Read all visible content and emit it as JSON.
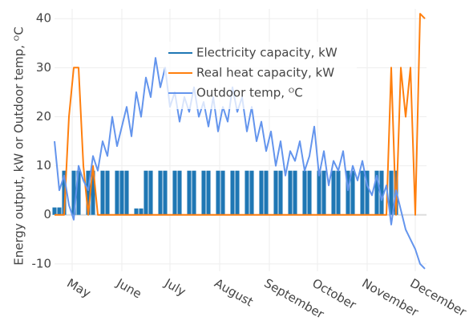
{
  "chart_data": {
    "type": "line",
    "y_label": "Energy output, kW or Outdoor temp, ᴼC",
    "x": [
      0,
      3,
      6,
      9,
      12,
      15,
      18,
      21,
      24,
      27,
      30,
      33,
      36,
      39,
      42,
      45,
      48,
      51,
      54,
      57,
      60,
      63,
      66,
      69,
      72,
      75,
      78,
      81,
      84,
      87,
      90,
      93,
      96,
      99,
      102,
      105,
      108,
      111,
      114,
      117,
      120,
      123,
      126,
      129,
      132,
      135,
      138,
      141,
      144,
      147,
      150,
      153,
      156,
      159,
      162,
      165,
      168,
      171,
      174,
      177,
      180,
      183,
      186,
      189,
      192,
      195,
      198,
      201,
      204,
      207,
      210,
      213,
      216,
      219,
      222,
      225,
      228,
      231
    ],
    "series": [
      {
        "name": "Electricity capacity, kW",
        "type": "bar",
        "color": "#1f77b4",
        "values": [
          1.5,
          1.5,
          9,
          0,
          9,
          9,
          0,
          9,
          9,
          0,
          9,
          9,
          0,
          9,
          9,
          9,
          0,
          1.3,
          1.3,
          9,
          9,
          0,
          9,
          9,
          0,
          9,
          9,
          0,
          9,
          9,
          0,
          9,
          9,
          0,
          9,
          9,
          0,
          9,
          9,
          0,
          9,
          9,
          0,
          9,
          9,
          0,
          9,
          9,
          0,
          9,
          9,
          0,
          9,
          9,
          0,
          9,
          9,
          0,
          9,
          9,
          0,
          9,
          9,
          0,
          9,
          9,
          0,
          9,
          9,
          0,
          9,
          9,
          0,
          0,
          0,
          0,
          0,
          0
        ]
      },
      {
        "name": "Real heat capacity, kW",
        "type": "line",
        "color": "#ff7f0e",
        "values": [
          0,
          0,
          0,
          20,
          30,
          30,
          10,
          0,
          10,
          0,
          0,
          0,
          0,
          0,
          0,
          0,
          0,
          0,
          0,
          0,
          0,
          0,
          0,
          0,
          0,
          0,
          0,
          0,
          0,
          0,
          0,
          0,
          0,
          0,
          0,
          0,
          0,
          0,
          0,
          0,
          0,
          0,
          0,
          0,
          0,
          0,
          0,
          0,
          0,
          0,
          0,
          0,
          0,
          0,
          0,
          0,
          0,
          0,
          0,
          0,
          0,
          0,
          0,
          0,
          0,
          0,
          0,
          0,
          0,
          0,
          30,
          0,
          30,
          20,
          30,
          0,
          41,
          40
        ]
      },
      {
        "name": "Outdoor temp,  ᴼC",
        "type": "line",
        "color": "#6495ed",
        "values": [
          15,
          5,
          8,
          2,
          -1,
          10,
          7,
          5,
          12,
          9,
          15,
          12,
          20,
          14,
          18,
          22,
          16,
          25,
          20,
          28,
          24,
          32,
          26,
          30,
          22,
          25,
          19,
          24,
          21,
          26,
          20,
          23,
          18,
          24,
          17,
          22,
          19,
          26,
          21,
          24,
          17,
          22,
          15,
          19,
          13,
          17,
          10,
          15,
          8,
          13,
          11,
          15,
          9,
          12,
          18,
          8,
          13,
          6,
          11,
          9,
          13,
          5,
          10,
          7,
          11,
          6,
          4,
          8,
          3,
          6,
          -2,
          5,
          1,
          -3,
          -5,
          -7,
          -10,
          -11
        ]
      }
    ],
    "xlim": [
      0,
      232
    ],
    "xticks": [
      {
        "value": 11,
        "label": "May"
      },
      {
        "value": 42,
        "label": "June"
      },
      {
        "value": 72,
        "label": "July"
      },
      {
        "value": 103,
        "label": "August"
      },
      {
        "value": 134,
        "label": "September"
      },
      {
        "value": 164,
        "label": "October"
      },
      {
        "value": 195,
        "label": "November"
      },
      {
        "value": 225,
        "label": "December"
      }
    ],
    "ylim": [
      -11.5,
      42
    ],
    "yticks": [
      -10,
      0,
      10,
      20,
      30,
      40
    ],
    "grid": true
  }
}
